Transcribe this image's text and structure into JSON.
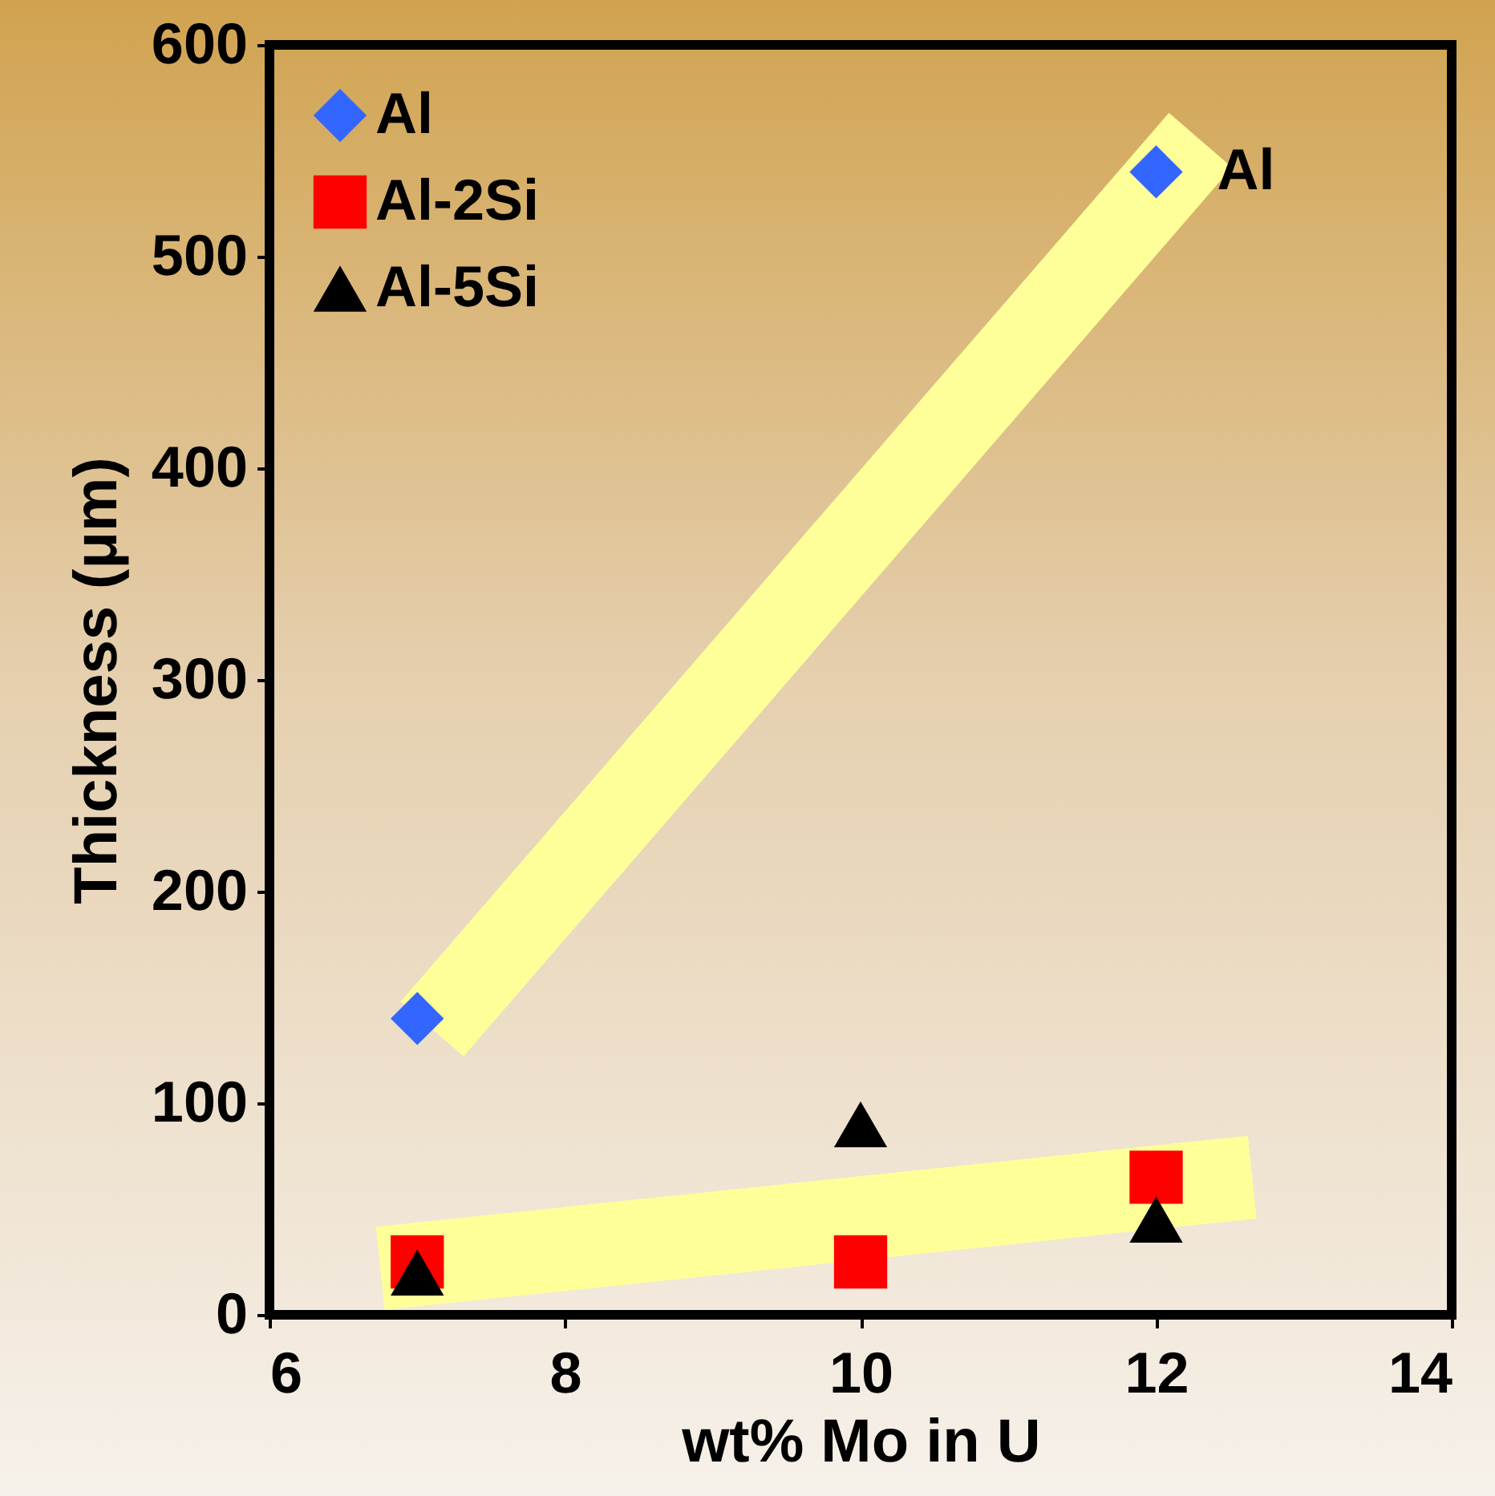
{
  "chart_data": {
    "type": "scatter",
    "xlabel": "wt% Mo in U",
    "ylabel": "Thickness (μm)",
    "x": [
      7,
      10,
      12
    ],
    "xlim": [
      6,
      14
    ],
    "xticks": [
      6,
      8,
      10,
      12,
      14
    ],
    "ylim": [
      0,
      600
    ],
    "yticks": [
      0,
      100,
      200,
      300,
      400,
      500,
      600
    ],
    "grid": false,
    "legend": "top left",
    "series": [
      {
        "type": "line",
        "color": "#ffff99",
        "x": [
          7.1,
          12.3
        ],
        "values": [
          135,
          555
        ]
      },
      {
        "type": "line",
        "color": "#ffff99",
        "x": [
          6.75,
          12.65
        ],
        "values": [
          22,
          65
        ]
      },
      {
        "name": "Al",
        "color": "#3366ff",
        "marker": "diamond",
        "x": [
          7,
          12
        ],
        "values": [
          140,
          540
        ]
      },
      {
        "name": "Al-2Si",
        "color": "#ff0000",
        "marker": "square",
        "values": [
          25,
          25,
          65
        ]
      },
      {
        "name": "Al-5Si",
        "color": "#000000",
        "marker": "triangle",
        "values": [
          20,
          90,
          45
        ]
      }
    ],
    "annotations": [
      {
        "text": "Al",
        "x": 12,
        "y": 540
      }
    ]
  }
}
